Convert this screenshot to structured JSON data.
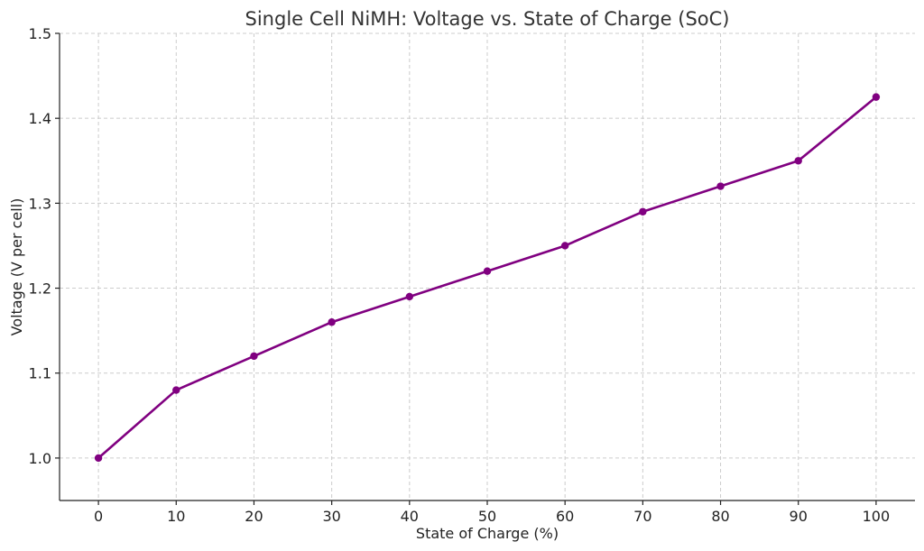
{
  "chart_data": {
    "type": "line",
    "title": "Single Cell NiMH: Voltage vs. State of Charge (SoC)",
    "xlabel": "State of Charge (%)",
    "ylabel": "Voltage (V per cell)",
    "xlim": [
      -5,
      105
    ],
    "ylim": [
      0.95,
      1.5
    ],
    "xticks": [
      0,
      10,
      20,
      30,
      40,
      50,
      60,
      70,
      80,
      90,
      100
    ],
    "yticks": [
      1.0,
      1.1,
      1.2,
      1.3,
      1.4,
      1.5
    ],
    "ytick_labels": [
      "1.0",
      "1.1",
      "1.2",
      "1.3",
      "1.4",
      "1.5"
    ],
    "grid": true,
    "line_color": "#800080",
    "series": [
      {
        "x": [
          0,
          10,
          20,
          30,
          40,
          50,
          60,
          70,
          80,
          90,
          100
        ],
        "y": [
          1.0,
          1.08,
          1.12,
          1.16,
          1.19,
          1.22,
          1.25,
          1.29,
          1.32,
          1.35,
          1.425
        ]
      }
    ]
  }
}
